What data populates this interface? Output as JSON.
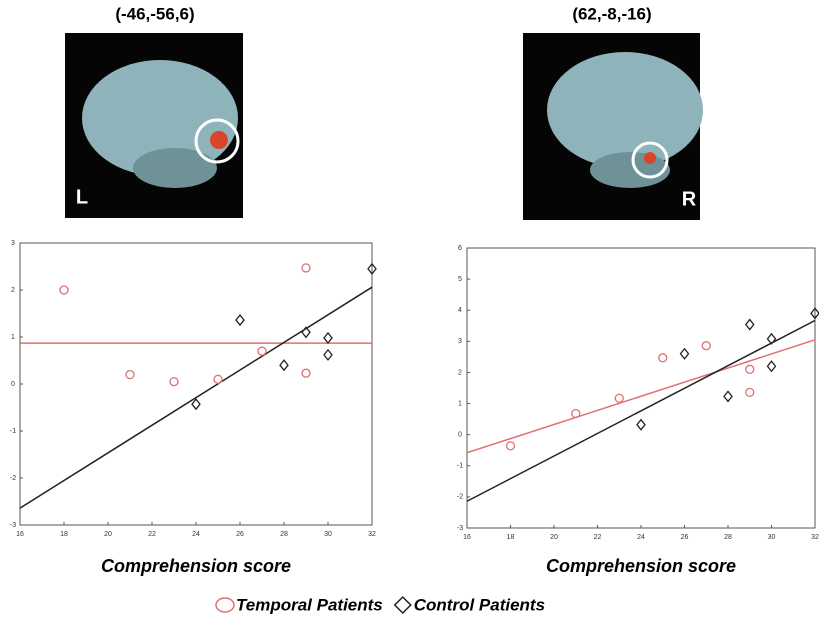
{
  "chart_data": [
    {
      "type": "scatter",
      "title": "(-46,-56,6)",
      "image_label": "L",
      "x_label": "Comprehension score",
      "xlim": [
        16,
        32
      ],
      "xticks": [
        16,
        18,
        20,
        22,
        24,
        26,
        28,
        30,
        32
      ],
      "ylim": [
        -3,
        3
      ],
      "yticks": [
        -3,
        -2,
        -1,
        0,
        1,
        2,
        3
      ],
      "series": [
        {
          "marker": "circle",
          "color": "#e07070",
          "x": [
            18,
            21,
            23,
            25,
            27,
            29,
            29
          ],
          "values": [
            2.0,
            0.2,
            0.05,
            0.1,
            0.7,
            0.23,
            2.47
          ]
        },
        {
          "marker": "diamond",
          "color": "#222222",
          "x": [
            24,
            26,
            28,
            29,
            30,
            30,
            32
          ],
          "values": [
            -0.43,
            1.36,
            0.4,
            1.1,
            0.98,
            0.62,
            2.45
          ]
        }
      ],
      "fit_lines": [
        {
          "color": "#e07070",
          "x": [
            16,
            32
          ],
          "values": [
            0.87,
            0.87
          ]
        },
        {
          "color": "#222222",
          "x": [
            16,
            32
          ],
          "values": [
            -2.64,
            2.06
          ]
        }
      ]
    },
    {
      "type": "scatter",
      "title": "(62,-8,-16)",
      "image_label": "R",
      "x_label": "Comprehension score",
      "xlim": [
        16,
        32
      ],
      "xticks": [
        16,
        18,
        20,
        22,
        24,
        26,
        28,
        30,
        32
      ],
      "ylim": [
        -3,
        6
      ],
      "yticks": [
        -3,
        -2,
        -1,
        0,
        1,
        2,
        3,
        4,
        5,
        6
      ],
      "series": [
        {
          "marker": "circle",
          "color": "#e07070",
          "x": [
            18,
            21,
            23,
            25,
            27,
            29,
            29
          ],
          "values": [
            -0.36,
            0.68,
            1.17,
            2.47,
            2.86,
            2.1,
            1.36
          ]
        },
        {
          "marker": "diamond",
          "color": "#222222",
          "x": [
            24,
            26,
            28,
            29,
            30,
            30,
            32
          ],
          "values": [
            0.32,
            2.6,
            1.23,
            3.54,
            3.08,
            2.2,
            3.9
          ]
        }
      ],
      "fit_lines": [
        {
          "color": "#e07070",
          "x": [
            16,
            32
          ],
          "values": [
            -0.58,
            3.05
          ]
        },
        {
          "color": "#222222",
          "x": [
            16,
            32
          ],
          "values": [
            -2.14,
            3.67
          ]
        }
      ]
    }
  ],
  "legend": [
    {
      "name": "Temporal Patients",
      "color": "#e07070",
      "marker": "circle"
    },
    {
      "name": "Control Patients",
      "color": "#222222",
      "marker": "diamond"
    }
  ]
}
